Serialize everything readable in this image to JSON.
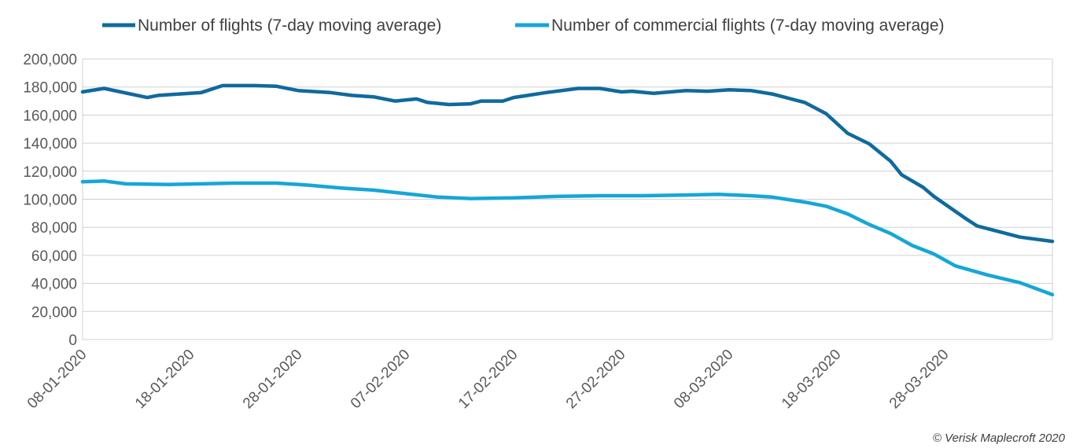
{
  "chart_data": {
    "type": "line",
    "title": "",
    "xlabel": "",
    "ylabel": "",
    "ylim": [
      0,
      200000
    ],
    "yticks": [
      "0",
      "20,000",
      "40,000",
      "60,000",
      "80,000",
      "100,000",
      "120,000",
      "140,000",
      "160,000",
      "180,000",
      "200,000"
    ],
    "xlim": [
      "08-01-2020",
      "07-04-2020"
    ],
    "xticks": [
      "08-01-2020",
      "18-01-2020",
      "28-01-2020",
      "07-02-2020",
      "17-02-2020",
      "27-02-2020",
      "08-03-2020",
      "18-03-2020",
      "28-03-2020"
    ],
    "grid": "horizontal",
    "legend": "top",
    "series": [
      {
        "name": "Number of flights (7-day moving average)",
        "color": "#0f6a9e",
        "x": [
          "08-01-2020",
          "10-01-2020",
          "14-01-2020",
          "15-01-2020",
          "19-01-2020",
          "21-01-2020",
          "24-01-2020",
          "26-01-2020",
          "28-01-2020",
          "31-01-2020",
          "02-02-2020",
          "04-02-2020",
          "06-02-2020",
          "08-02-2020",
          "09-02-2020",
          "11-02-2020",
          "13-02-2020",
          "14-02-2020",
          "16-02-2020",
          "17-02-2020",
          "20-02-2020",
          "23-02-2020",
          "25-02-2020",
          "27-02-2020",
          "28-02-2020",
          "01-03-2020",
          "04-03-2020",
          "06-03-2020",
          "08-03-2020",
          "10-03-2020",
          "12-03-2020",
          "15-03-2020",
          "17-03-2020",
          "19-03-2020",
          "21-03-2020",
          "23-03-2020",
          "24-03-2020",
          "26-03-2020",
          "27-03-2020",
          "30-03-2020",
          "31-03-2020",
          "02-04-2020",
          "04-04-2020",
          "07-04-2020"
        ],
        "y": [
          176500,
          179000,
          172500,
          174000,
          176000,
          181000,
          181000,
          180500,
          177500,
          176000,
          174000,
          173000,
          170000,
          171500,
          169000,
          167500,
          168000,
          170000,
          170000,
          172500,
          176000,
          179000,
          179000,
          176500,
          177000,
          175500,
          177500,
          177000,
          178000,
          177500,
          175000,
          169000,
          161000,
          147000,
          139500,
          127000,
          117500,
          108500,
          102000,
          86000,
          81000,
          77000,
          73000,
          70000
        ]
      },
      {
        "name": "Number of commercial flights (7-day moving average)",
        "color": "#16a6d8",
        "x": [
          "08-01-2020",
          "10-01-2020",
          "12-01-2020",
          "16-01-2020",
          "19-01-2020",
          "22-01-2020",
          "26-01-2020",
          "29-01-2020",
          "01-02-2020",
          "04-02-2020",
          "07-02-2020",
          "10-02-2020",
          "13-02-2020",
          "17-02-2020",
          "21-02-2020",
          "25-02-2020",
          "29-02-2020",
          "04-03-2020",
          "07-03-2020",
          "10-03-2020",
          "12-03-2020",
          "15-03-2020",
          "17-03-2020",
          "19-03-2020",
          "21-03-2020",
          "23-03-2020",
          "25-03-2020",
          "27-03-2020",
          "29-03-2020",
          "01-04-2020",
          "04-04-2020",
          "07-04-2020"
        ],
        "y": [
          112500,
          113000,
          111000,
          110500,
          111000,
          111500,
          111500,
          110000,
          108000,
          106500,
          104000,
          101500,
          100500,
          101000,
          102000,
          102500,
          102500,
          103000,
          103500,
          102500,
          101500,
          98000,
          95000,
          89500,
          82000,
          75500,
          67000,
          61000,
          52500,
          46000,
          40500,
          32000
        ]
      }
    ]
  },
  "footer": {
    "copyright": "© Verisk Maplecroft 2020"
  }
}
